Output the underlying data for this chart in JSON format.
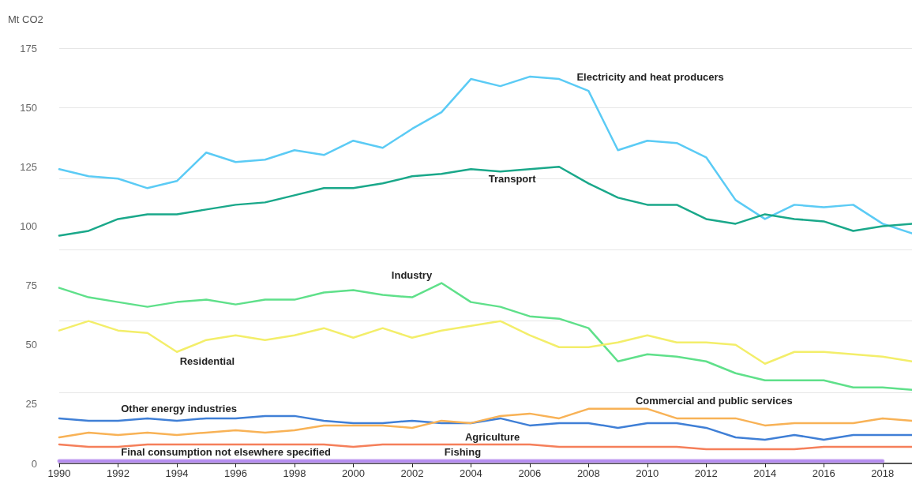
{
  "chart_data": {
    "type": "line",
    "ylabel": "Mt CO2",
    "x": [
      1990,
      1991,
      1992,
      1993,
      1994,
      1995,
      1996,
      1997,
      1998,
      1999,
      2000,
      2001,
      2002,
      2003,
      2004,
      2005,
      2006,
      2007,
      2008,
      2009,
      2010,
      2011,
      2012,
      2013,
      2014,
      2015,
      2016,
      2017,
      2018,
      2019
    ],
    "xlim": [
      1990,
      2019
    ],
    "xticks": [
      1990,
      1992,
      1994,
      1996,
      1998,
      2000,
      2002,
      2004,
      2006,
      2008,
      2010,
      2012,
      2014,
      2016,
      2018
    ],
    "ylim": [
      0,
      175
    ],
    "yticks": [
      0,
      25,
      50,
      75,
      100,
      125,
      150,
      175
    ],
    "grid": "y",
    "marker": "none",
    "line_style": "solid",
    "series": [
      {
        "name": "Electricity and heat producers",
        "color": "#5bcbf5",
        "values": [
          124,
          121,
          120,
          116,
          119,
          131,
          127,
          128,
          132,
          130,
          136,
          133,
          141,
          148,
          162,
          159,
          163,
          162,
          157,
          132,
          136,
          135,
          129,
          111,
          103,
          109,
          108,
          109,
          101,
          97
        ]
      },
      {
        "name": "Transport",
        "color": "#1aa88a",
        "values": [
          96,
          98,
          103,
          105,
          105,
          107,
          109,
          110,
          113,
          116,
          116,
          118,
          121,
          122,
          124,
          123,
          124,
          125,
          118,
          112,
          109,
          109,
          103,
          101,
          105,
          103,
          102,
          98,
          100,
          101
        ]
      },
      {
        "name": "Industry",
        "color": "#5fe08a",
        "values": [
          74,
          70,
          68,
          66,
          68,
          69,
          67,
          69,
          69,
          72,
          73,
          71,
          70,
          76,
          68,
          66,
          62,
          61,
          57,
          43,
          46,
          45,
          43,
          38,
          35,
          35,
          35,
          32,
          32,
          31
        ]
      },
      {
        "name": "Residential",
        "color": "#f3ee6a",
        "values": [
          56,
          60,
          56,
          55,
          47,
          52,
          54,
          52,
          54,
          57,
          53,
          57,
          53,
          56,
          58,
          60,
          54,
          49,
          49,
          51,
          54,
          51,
          51,
          50,
          42,
          47,
          47,
          46,
          45,
          43
        ]
      },
      {
        "name": "Other energy industries",
        "color": "#3f7fd6",
        "values": [
          19,
          18,
          18,
          19,
          18,
          19,
          19,
          20,
          20,
          18,
          17,
          17,
          18,
          17,
          17,
          19,
          16,
          17,
          17,
          15,
          17,
          17,
          15,
          11,
          10,
          12,
          10,
          12,
          12,
          12
        ]
      },
      {
        "name": "Commercial and public services",
        "color": "#f8b256",
        "values": [
          11,
          13,
          12,
          13,
          12,
          13,
          14,
          13,
          14,
          16,
          16,
          16,
          15,
          18,
          17,
          20,
          21,
          19,
          23,
          23,
          23,
          19,
          19,
          19,
          16,
          17,
          17,
          17,
          19,
          18
        ]
      },
      {
        "name": "Agriculture",
        "color": "#f57f5a",
        "values": [
          8,
          7,
          7,
          8,
          8,
          8,
          8,
          8,
          8,
          8,
          7,
          8,
          8,
          8,
          8,
          8,
          8,
          7,
          7,
          7,
          7,
          7,
          6,
          6,
          6,
          6,
          7,
          7,
          7,
          7
        ]
      },
      {
        "name": "Final consumption not elsewhere specified",
        "color": "#c7a6f2",
        "values": [
          1,
          1,
          1,
          1,
          1,
          1,
          1,
          1,
          1,
          1,
          1,
          1,
          1,
          1,
          1,
          1,
          1,
          1,
          1,
          1,
          1,
          1,
          1,
          1,
          1,
          1,
          1,
          1,
          1,
          null
        ]
      },
      {
        "name": "Fishing",
        "color": "#b48cf0",
        "values": [
          1,
          1,
          1,
          1,
          1,
          1,
          1,
          1,
          1,
          1,
          1,
          1,
          1,
          1,
          1,
          1,
          1,
          1,
          1,
          1,
          1,
          1,
          1,
          1,
          1,
          1,
          1,
          1,
          1,
          null
        ]
      }
    ]
  }
}
